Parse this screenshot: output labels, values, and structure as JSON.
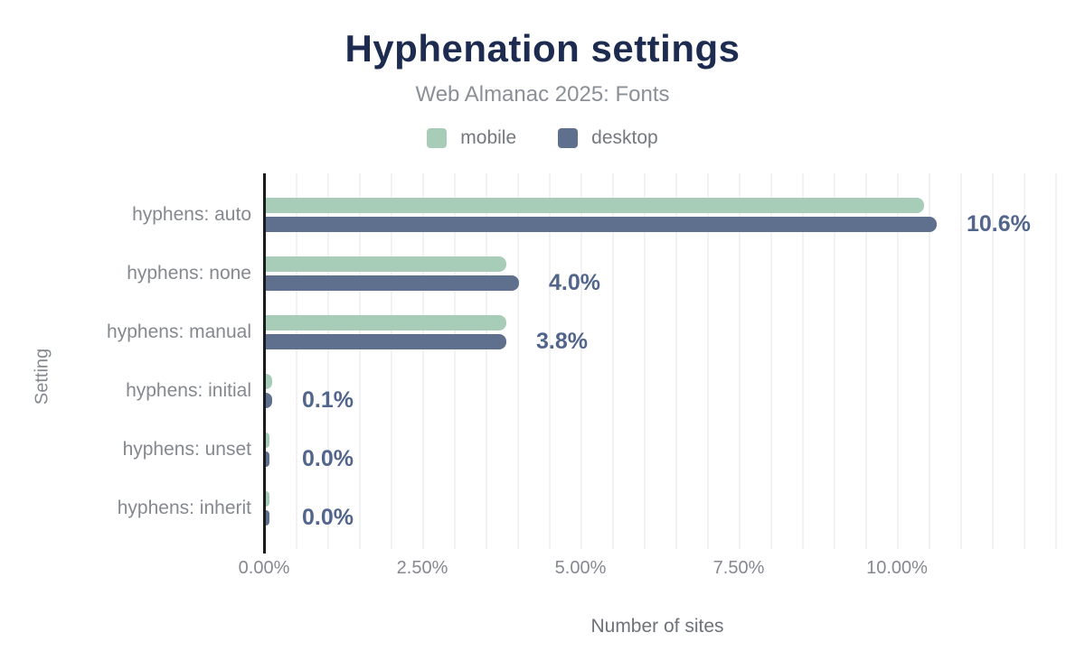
{
  "title": "Hyphenation settings",
  "subtitle": "Web Almanac 2025: Fonts",
  "legend": {
    "items": [
      {
        "label": "mobile",
        "color": "#a7ccb8"
      },
      {
        "label": "desktop",
        "color": "#5f6f8e"
      }
    ]
  },
  "chart_data": {
    "type": "bar",
    "orientation": "horizontal",
    "title": "Hyphenation settings",
    "subtitle": "Web Almanac 2025: Fonts",
    "categories": [
      "hyphens: auto",
      "hyphens: none",
      "hyphens: manual",
      "hyphens: initial",
      "hyphens: unset",
      "hyphens: inherit"
    ],
    "series": [
      {
        "name": "mobile",
        "values": [
          10.4,
          3.8,
          3.8,
          0.1,
          0.0,
          0.0
        ]
      },
      {
        "name": "desktop",
        "values": [
          10.6,
          4.0,
          3.8,
          0.1,
          0.0,
          0.0
        ]
      }
    ],
    "value_labels": [
      "10.6%",
      "4.0%",
      "3.8%",
      "0.1%",
      "0.0%",
      "0.0%"
    ],
    "xlabel": "Number of sites",
    "ylabel": "Setting",
    "x_ticks": [
      {
        "value": 0,
        "label": "0.00%"
      },
      {
        "value": 2.5,
        "label": "2.50%"
      },
      {
        "value": 5,
        "label": "5.00%"
      },
      {
        "value": 7.5,
        "label": "7.50%"
      },
      {
        "value": 10,
        "label": "10.00%"
      }
    ],
    "xlim": [
      0,
      12.5
    ],
    "minor_grid_step": 0.5,
    "grid": "vertical-minor",
    "legend_position": "top"
  },
  "colors": {
    "mobile_bar": "#a7ccb8",
    "desktop_bar": "#5f6f8e",
    "title_text": "#1c2b4f",
    "subtitle_text": "#8b9097",
    "value_label_text": "#52658b",
    "axis_text": "#85898f",
    "gridline": "#f2f2f4",
    "axis_line": "#1a1b1d",
    "background": "#ffffff"
  }
}
